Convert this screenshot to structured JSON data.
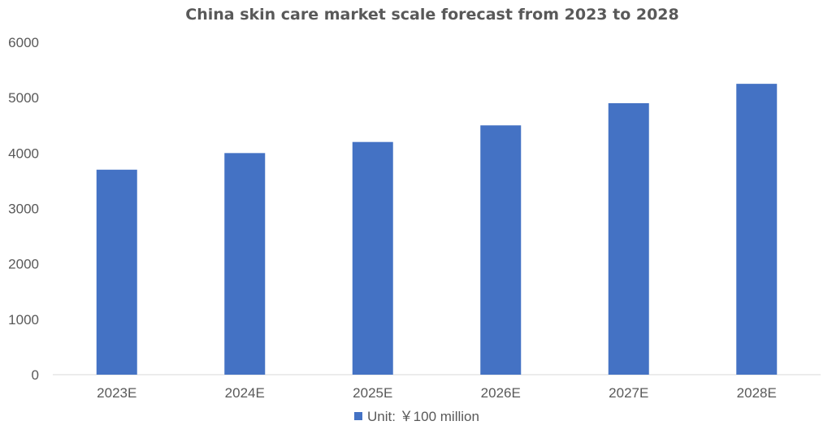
{
  "chart_data": {
    "type": "bar",
    "title": "China skin care market scale forecast from 2023 to 2028",
    "categories": [
      "2023E",
      "2024E",
      "2025E",
      "2026E",
      "2027E",
      "2028E"
    ],
    "series": [
      {
        "name": "Unit: ￥100 million",
        "color": "#4472C4",
        "values": [
          3700,
          4000,
          4200,
          4500,
          4900,
          5250
        ]
      }
    ],
    "ylim": [
      0,
      6000
    ],
    "yticks": [
      "0",
      "1000",
      "2000",
      "3000",
      "4000",
      "5000",
      "6000"
    ],
    "grid": false,
    "legend_position": "bottom"
  }
}
